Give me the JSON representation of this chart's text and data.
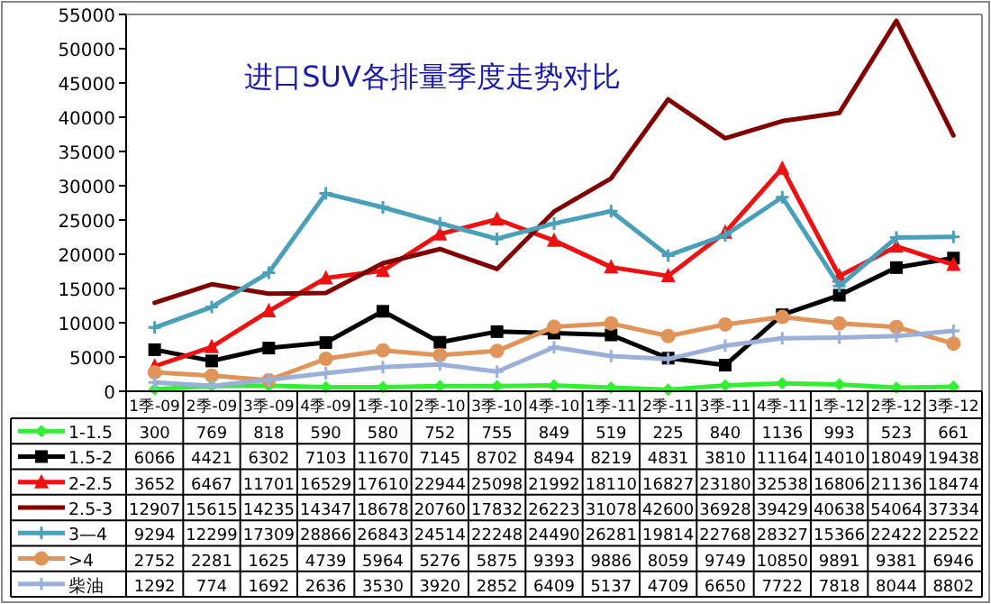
{
  "chart_data": {
    "type": "line",
    "title": "进口SUV各排量季度走势对比",
    "categories": [
      "1季-09",
      "2季-09",
      "3季-09",
      "4季-09",
      "1季-10",
      "2季-10",
      "3季-10",
      "4季-10",
      "1季-11",
      "2季-11",
      "3季-11",
      "4季-11",
      "1季-12",
      "2季-12",
      "3季-12"
    ],
    "series": [
      {
        "name": "1-1.5",
        "color": "#33ee33",
        "marker": "diamond",
        "values": [
          300,
          769,
          818,
          590,
          580,
          752,
          755,
          849,
          519,
          225,
          840,
          1136,
          993,
          523,
          661
        ]
      },
      {
        "name": "1.5-2",
        "color": "#000000",
        "marker": "square",
        "values": [
          6066,
          4421,
          6302,
          7103,
          11670,
          7145,
          8702,
          8494,
          8219,
          4831,
          3810,
          11164,
          14010,
          18049,
          19438
        ]
      },
      {
        "name": "2-2.5",
        "color": "#ee1111",
        "marker": "triangle",
        "values": [
          3652,
          6467,
          11701,
          16529,
          17610,
          22944,
          25098,
          21992,
          18110,
          16827,
          23180,
          32538,
          16806,
          21136,
          18474
        ]
      },
      {
        "name": "2.5-3",
        "color": "#800000",
        "marker": "none",
        "values": [
          12907,
          15615,
          14235,
          14347,
          18678,
          20760,
          17832,
          26223,
          31078,
          42600,
          36928,
          39429,
          40638,
          54064,
          37334
        ]
      },
      {
        "name": "3—4",
        "color": "#4aa0b8",
        "marker": "cross",
        "values": [
          9294,
          12299,
          17309,
          28866,
          26843,
          24514,
          22248,
          24490,
          26281,
          19814,
          22768,
          28327,
          15366,
          22422,
          22522
        ]
      },
      {
        "name": ">4",
        "color": "#e0945a",
        "marker": "circle",
        "values": [
          2752,
          2281,
          1625,
          4739,
          5964,
          5276,
          5875,
          9393,
          9886,
          8059,
          9749,
          10850,
          9891,
          9381,
          6946
        ]
      },
      {
        "name": "柴油",
        "color": "#9ab0d8",
        "marker": "cross",
        "values": [
          1292,
          774,
          1692,
          2636,
          3530,
          3920,
          2852,
          6409,
          5137,
          4709,
          6650,
          7722,
          7818,
          8044,
          8802
        ]
      }
    ],
    "ylim": [
      0,
      55000
    ],
    "yticks": [
      0,
      5000,
      10000,
      15000,
      20000,
      25000,
      30000,
      35000,
      40000,
      45000,
      50000,
      55000
    ],
    "grid": false,
    "legend": "bottom",
    "data_labels": true
  }
}
